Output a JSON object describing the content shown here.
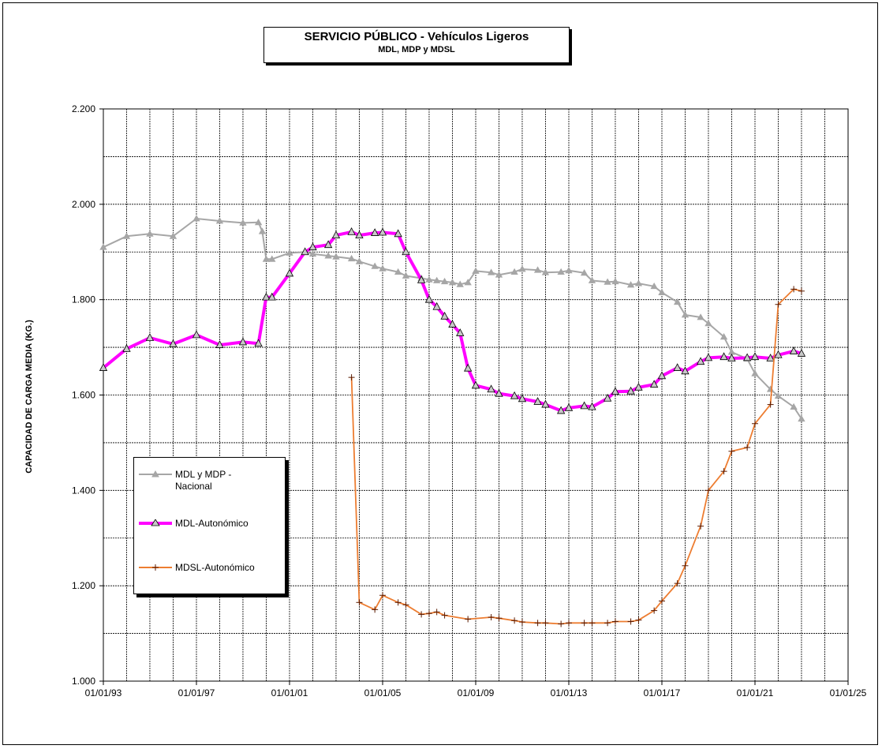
{
  "chart_data": {
    "type": "line",
    "title": "SERVICIO PÚBLICO - Vehículos Ligeros",
    "subtitle": "MDL, MDP y MDSL",
    "ylabel": "CAPACIDAD  DE  CARGA   MEDIA   (KG.)",
    "xlabel": "",
    "x_range": [
      "1993-01-01",
      "2025-01-01"
    ],
    "ylim": [
      1000,
      2200
    ],
    "x_tick_labels": [
      "01/01/93",
      "01/01/97",
      "01/01/01",
      "01/01/05",
      "01/01/09",
      "01/01/13",
      "01/01/17",
      "01/01/21",
      "01/01/25"
    ],
    "y_tick_labels": [
      "1.000",
      "1.200",
      "1.400",
      "1.600",
      "1.800",
      "2.000",
      "2.200"
    ],
    "grid": true,
    "legend_position": "left",
    "series": [
      {
        "name": "MDL y MDP - Nacional",
        "color": "#a6a6a6",
        "marker": "triangle",
        "points": [
          [
            "1993-01-01",
            1910
          ],
          [
            "1994-01-01",
            1933
          ],
          [
            "1995-01-01",
            1938
          ],
          [
            "1996-01-01",
            1933
          ],
          [
            "1997-01-01",
            1970
          ],
          [
            "1998-01-01",
            1965
          ],
          [
            "1999-01-01",
            1961
          ],
          [
            "1999-09-01",
            1962
          ],
          [
            "1999-11-01",
            1943
          ],
          [
            "2000-01-01",
            1885
          ],
          [
            "2000-04-01",
            1885
          ],
          [
            "2001-01-01",
            1898
          ],
          [
            "2001-09-01",
            1900
          ],
          [
            "2002-01-01",
            1896
          ],
          [
            "2002-09-01",
            1892
          ],
          [
            "2003-01-01",
            1890
          ],
          [
            "2003-09-01",
            1886
          ],
          [
            "2004-01-01",
            1880
          ],
          [
            "2004-09-01",
            1870
          ],
          [
            "2005-01-01",
            1865
          ],
          [
            "2005-09-01",
            1858
          ],
          [
            "2006-01-01",
            1850
          ],
          [
            "2006-09-01",
            1845
          ],
          [
            "2007-01-01",
            1842
          ],
          [
            "2007-05-01",
            1840
          ],
          [
            "2007-09-01",
            1838
          ],
          [
            "2008-01-01",
            1836
          ],
          [
            "2008-05-01",
            1832
          ],
          [
            "2008-09-01",
            1836
          ],
          [
            "2009-01-01",
            1860
          ],
          [
            "2009-09-01",
            1857
          ],
          [
            "2010-01-01",
            1852
          ],
          [
            "2010-09-01",
            1858
          ],
          [
            "2011-01-01",
            1864
          ],
          [
            "2011-09-01",
            1862
          ],
          [
            "2012-01-01",
            1857
          ],
          [
            "2012-09-01",
            1858
          ],
          [
            "2013-01-01",
            1861
          ],
          [
            "2013-09-01",
            1856
          ],
          [
            "2014-01-01",
            1840
          ],
          [
            "2014-09-01",
            1837
          ],
          [
            "2015-01-01",
            1838
          ],
          [
            "2015-09-01",
            1831
          ],
          [
            "2016-01-01",
            1834
          ],
          [
            "2016-09-01",
            1828
          ],
          [
            "2017-01-01",
            1815
          ],
          [
            "2017-09-01",
            1795
          ],
          [
            "2018-01-01",
            1768
          ],
          [
            "2018-09-01",
            1763
          ],
          [
            "2019-01-01",
            1750
          ],
          [
            "2019-09-01",
            1722
          ],
          [
            "2020-01-01",
            1690
          ],
          [
            "2020-09-01",
            1676
          ],
          [
            "2021-01-01",
            1645
          ],
          [
            "2021-09-01",
            1612
          ],
          [
            "2022-01-01",
            1598
          ],
          [
            "2022-09-01",
            1575
          ],
          [
            "2023-01-01",
            1550
          ]
        ]
      },
      {
        "name": "MDL-Autonómico",
        "color": "#ff00ff",
        "marker": "triangle",
        "points": [
          [
            "1993-01-01",
            1657
          ],
          [
            "1994-01-01",
            1697
          ],
          [
            "1995-01-01",
            1720
          ],
          [
            "1996-01-01",
            1707
          ],
          [
            "1997-01-01",
            1726
          ],
          [
            "1998-01-01",
            1705
          ],
          [
            "1999-01-01",
            1711
          ],
          [
            "1999-09-01",
            1708
          ],
          [
            "2000-01-01",
            1805
          ],
          [
            "2000-04-01",
            1805
          ],
          [
            "2001-01-01",
            1855
          ],
          [
            "2001-09-01",
            1900
          ],
          [
            "2002-01-01",
            1910
          ],
          [
            "2002-09-01",
            1915
          ],
          [
            "2003-01-01",
            1935
          ],
          [
            "2003-09-01",
            1942
          ],
          [
            "2004-01-01",
            1935
          ],
          [
            "2004-09-01",
            1940
          ],
          [
            "2005-01-01",
            1941
          ],
          [
            "2005-09-01",
            1938
          ],
          [
            "2006-01-01",
            1900
          ],
          [
            "2006-09-01",
            1841
          ],
          [
            "2007-01-01",
            1800
          ],
          [
            "2007-05-01",
            1785
          ],
          [
            "2007-09-01",
            1765
          ],
          [
            "2008-01-01",
            1748
          ],
          [
            "2008-05-01",
            1730
          ],
          [
            "2008-09-01",
            1656
          ],
          [
            "2009-01-01",
            1620
          ],
          [
            "2009-09-01",
            1612
          ],
          [
            "2010-01-01",
            1603
          ],
          [
            "2010-09-01",
            1598
          ],
          [
            "2011-01-01",
            1592
          ],
          [
            "2011-09-01",
            1586
          ],
          [
            "2012-01-01",
            1580
          ],
          [
            "2012-09-01",
            1567
          ],
          [
            "2013-01-01",
            1573
          ],
          [
            "2013-09-01",
            1577
          ],
          [
            "2014-01-01",
            1575
          ],
          [
            "2014-09-01",
            1593
          ],
          [
            "2015-01-01",
            1607
          ],
          [
            "2015-09-01",
            1608
          ],
          [
            "2016-01-01",
            1616
          ],
          [
            "2016-09-01",
            1622
          ],
          [
            "2017-01-01",
            1640
          ],
          [
            "2017-09-01",
            1657
          ],
          [
            "2018-01-01",
            1650
          ],
          [
            "2018-09-01",
            1670
          ],
          [
            "2019-01-01",
            1678
          ],
          [
            "2019-09-01",
            1680
          ],
          [
            "2020-01-01",
            1677
          ],
          [
            "2020-09-01",
            1678
          ],
          [
            "2021-01-01",
            1680
          ],
          [
            "2021-09-01",
            1677
          ],
          [
            "2022-01-01",
            1684
          ],
          [
            "2022-09-01",
            1692
          ],
          [
            "2023-01-01",
            1687
          ]
        ]
      },
      {
        "name": "MDSL-Autonómico",
        "color": "#ed7d31",
        "marker": "plus",
        "points": [
          [
            "2003-09-01",
            1637
          ],
          [
            "2004-01-01",
            1165
          ],
          [
            "2004-09-01",
            1150
          ],
          [
            "2005-01-01",
            1180
          ],
          [
            "2005-09-01",
            1165
          ],
          [
            "2006-01-01",
            1160
          ],
          [
            "2006-09-01",
            1140
          ],
          [
            "2007-01-01",
            1142
          ],
          [
            "2007-05-01",
            1145
          ],
          [
            "2007-09-01",
            1138
          ],
          [
            "2008-09-01",
            1130
          ],
          [
            "2009-09-01",
            1134
          ],
          [
            "2010-01-01",
            1132
          ],
          [
            "2010-09-01",
            1127
          ],
          [
            "2011-01-01",
            1124
          ],
          [
            "2011-09-01",
            1122
          ],
          [
            "2012-01-01",
            1122
          ],
          [
            "2012-09-01",
            1120
          ],
          [
            "2013-01-01",
            1122
          ],
          [
            "2013-09-01",
            1122
          ],
          [
            "2014-01-01",
            1122
          ],
          [
            "2014-09-01",
            1122
          ],
          [
            "2015-01-01",
            1125
          ],
          [
            "2015-09-01",
            1125
          ],
          [
            "2016-01-01",
            1128
          ],
          [
            "2016-09-01",
            1148
          ],
          [
            "2017-01-01",
            1168
          ],
          [
            "2017-09-01",
            1205
          ],
          [
            "2018-01-01",
            1242
          ],
          [
            "2018-09-01",
            1325
          ],
          [
            "2019-01-01",
            1400
          ],
          [
            "2019-09-01",
            1440
          ],
          [
            "2020-01-01",
            1482
          ],
          [
            "2020-09-01",
            1490
          ],
          [
            "2021-01-01",
            1540
          ],
          [
            "2021-09-01",
            1580
          ],
          [
            "2022-01-01",
            1790
          ],
          [
            "2022-09-01",
            1822
          ],
          [
            "2023-01-01",
            1818
          ]
        ]
      }
    ]
  },
  "legend": {
    "item1": "MDL y MDP - Nacional",
    "item2": "MDL-Autonómico",
    "item3": "MDSL-Autonómico"
  }
}
